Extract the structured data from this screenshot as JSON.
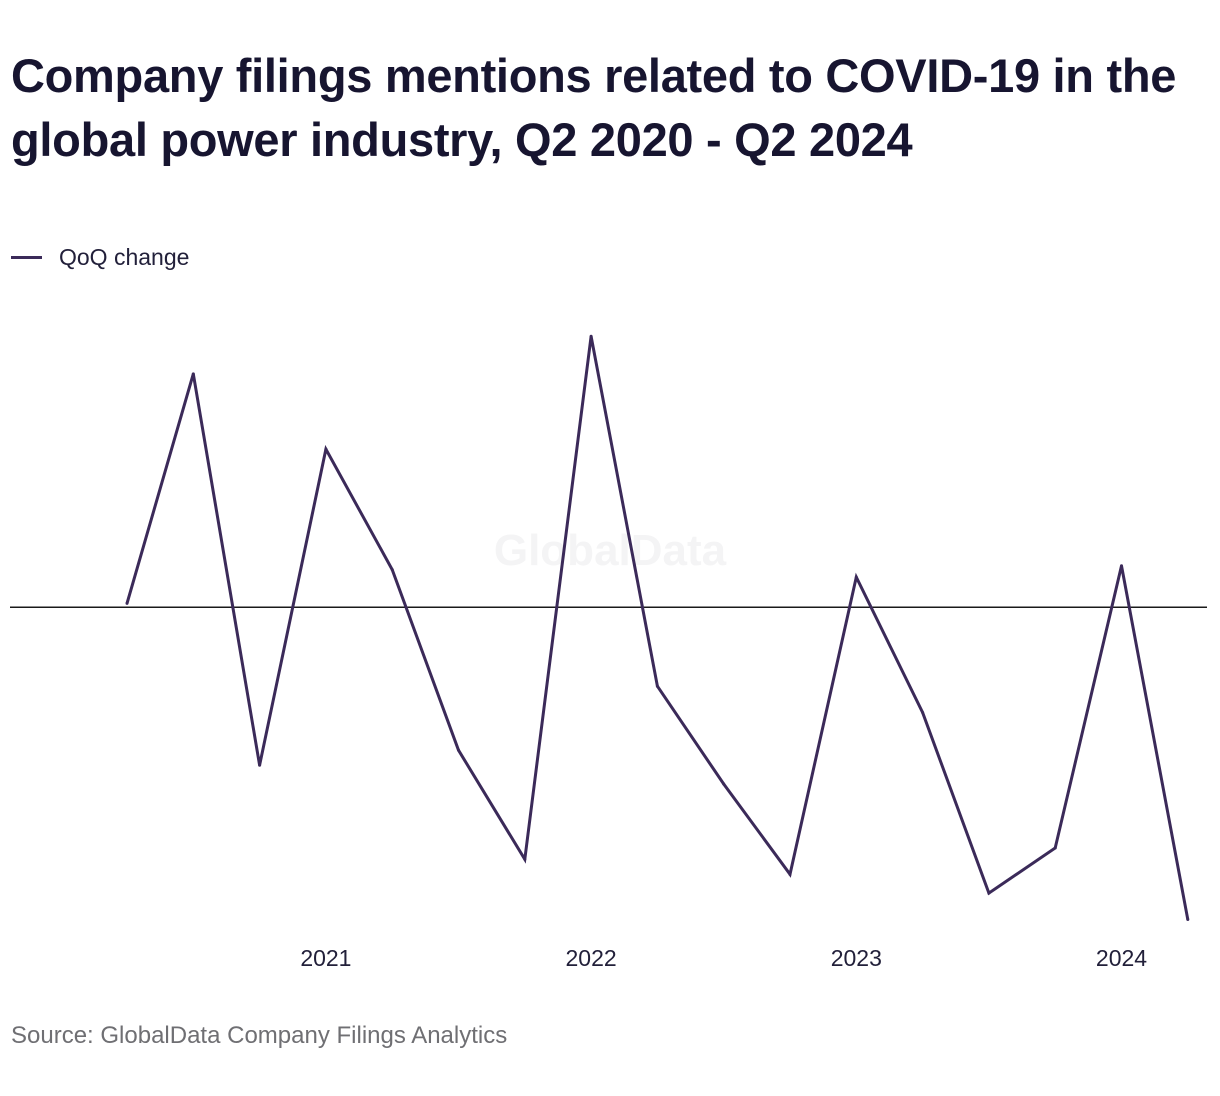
{
  "title": "Company filings mentions related to COVID-19 in the global power industry, Q2 2020 - Q2 2024",
  "legend": {
    "label": "QoQ change"
  },
  "watermark": "GlobalData",
  "source": "Source: GlobalData Company Filings Analytics",
  "colors": {
    "line": "#3b2a59",
    "zero_line": "#1a1a1a",
    "title": "#171530",
    "source_text": "#6f6f73"
  },
  "chart_data": {
    "type": "line",
    "series": [
      {
        "name": "QoQ change",
        "x": [
          "Q2 2020",
          "Q3 2020",
          "Q4 2020",
          "Q1 2021",
          "Q2 2021",
          "Q3 2021",
          "Q4 2021",
          "Q1 2022",
          "Q2 2022",
          "Q3 2022",
          "Q4 2022",
          "Q1 2023",
          "Q2 2023",
          "Q3 2023",
          "Q4 2023",
          "Q1 2024",
          "Q2 2024"
        ],
        "values": [
          1,
          62,
          -42,
          42,
          10,
          -38,
          -67,
          72,
          -21,
          -47,
          -71,
          8,
          -28,
          -76,
          -64,
          11,
          -83
        ]
      }
    ],
    "x_tick_labels": [
      {
        "label": "2021",
        "at": "Q1 2021"
      },
      {
        "label": "2022",
        "at": "Q1 2022"
      },
      {
        "label": "2023",
        "at": "Q1 2023"
      },
      {
        "label": "2024",
        "at": "Q1 2024"
      }
    ],
    "ylim": [
      -85,
      75
    ],
    "zero_line": true,
    "grid": false,
    "legend_position": "top-left"
  }
}
